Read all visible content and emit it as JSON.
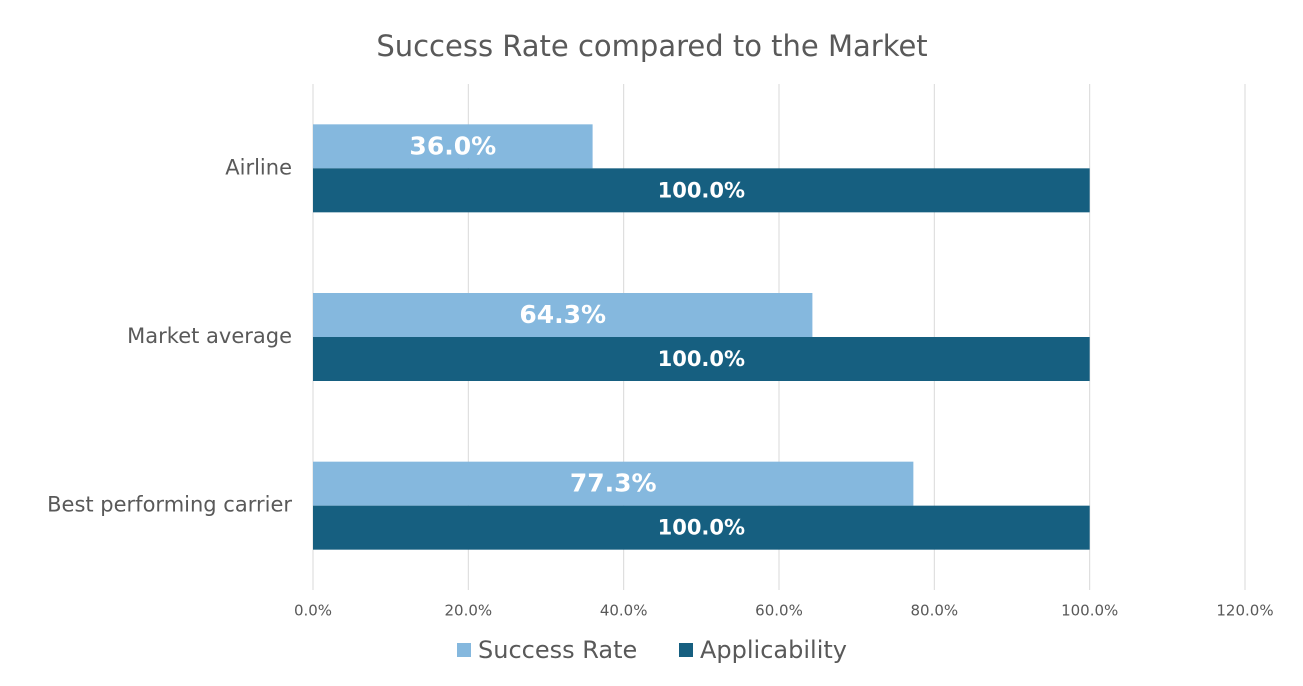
{
  "chart_data": {
    "type": "hbar",
    "title": "Success Rate compared to the Market",
    "categories": [
      "Airline",
      "Market average",
      "Best performing carrier"
    ],
    "series": [
      {
        "name": "Success Rate",
        "color": "#85b8de",
        "values": [
          36.0,
          64.3,
          77.3
        ],
        "value_labels": [
          "36.0%",
          "64.3%",
          "77.3%"
        ]
      },
      {
        "name": "Applicability",
        "color": "#165f80",
        "values": [
          100.0,
          100.0,
          100.0
        ],
        "value_labels": [
          "100.0%",
          "100.0%",
          "100.0%"
        ]
      }
    ],
    "xlim": [
      0,
      120
    ],
    "xticks": [
      {
        "value": 0,
        "label": "0.0%"
      },
      {
        "value": 20,
        "label": "20.0%"
      },
      {
        "value": 40,
        "label": "40.0%"
      },
      {
        "value": 60,
        "label": "60.0%"
      },
      {
        "value": 80,
        "label": "80.0%"
      },
      {
        "value": 100,
        "label": "100.0%"
      },
      {
        "value": 120,
        "label": "120.0%"
      }
    ],
    "grid": true,
    "legend": "bottom"
  }
}
